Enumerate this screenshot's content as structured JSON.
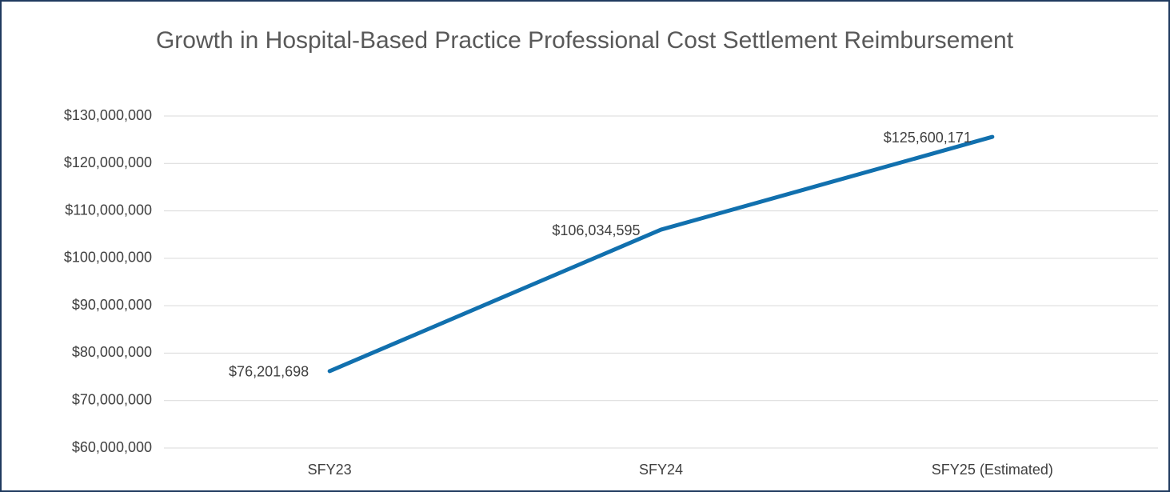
{
  "chart_data": {
    "type": "line",
    "title": "Growth in Hospital-Based Practice Professional Cost Settlement Reimbursement",
    "categories": [
      "SFY23",
      "SFY24",
      "SFY25 (Estimated)"
    ],
    "series": [
      {
        "name": "Reimbursement",
        "color": "#1170ae",
        "values": [
          76201698,
          106034595,
          125600171
        ],
        "value_labels": [
          "$76,201,698",
          "$106,034,595",
          "$125,600,171"
        ]
      }
    ],
    "ylim": [
      60000000,
      130000000
    ],
    "yticks": [
      {
        "value": 60000000,
        "label": "$60,000,000"
      },
      {
        "value": 70000000,
        "label": "$70,000,000"
      },
      {
        "value": 80000000,
        "label": "$80,000,000"
      },
      {
        "value": 90000000,
        "label": "$90,000,000"
      },
      {
        "value": 100000000,
        "label": "$100,000,000"
      },
      {
        "value": 110000000,
        "label": "$110,000,000"
      },
      {
        "value": 120000000,
        "label": "$120,000,000"
      },
      {
        "value": 130000000,
        "label": "$130,000,000"
      }
    ],
    "grid": true
  }
}
